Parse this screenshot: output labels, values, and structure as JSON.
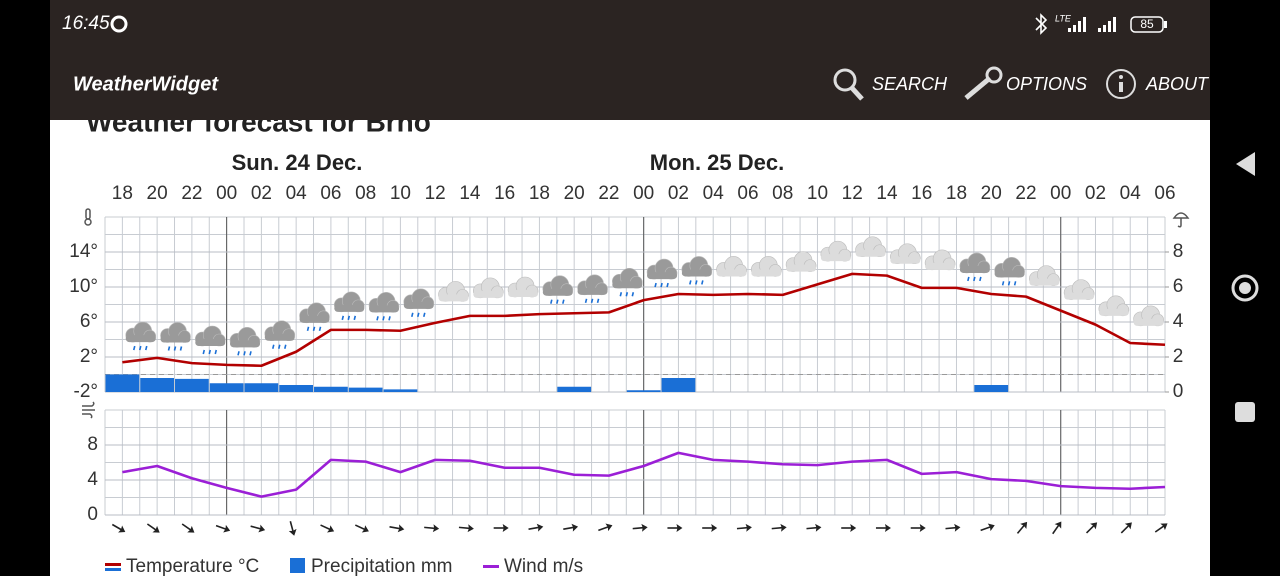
{
  "status_bar": {
    "time": "16:45",
    "network": "LTE",
    "battery": "85"
  },
  "app_bar": {
    "title": "WeatherWidget",
    "menu": [
      "SEARCH",
      "OPTIONS",
      "ABOUT"
    ]
  },
  "page": {
    "title": "Weather forecast for Brno",
    "days": [
      "Sun. 24 Dec.",
      "Mon. 25 Dec."
    ]
  },
  "chart_data": [
    {
      "type": "combo",
      "categories": [
        "18",
        "20",
        "22",
        "00",
        "02",
        "04",
        "06",
        "08",
        "10",
        "12",
        "14",
        "16",
        "18",
        "20",
        "22",
        "00",
        "02",
        "04",
        "06",
        "08",
        "10",
        "12",
        "14",
        "16",
        "18",
        "20",
        "22",
        "00",
        "02",
        "04",
        "06"
      ],
      "ylim": [
        -2,
        18
      ],
      "yticks": [
        {
          "value": -2,
          "label": "-2°"
        },
        {
          "value": 2,
          "label": "2°"
        },
        {
          "value": 6,
          "label": "6°"
        },
        {
          "value": 10,
          "label": "10°"
        },
        {
          "value": 14,
          "label": "14°"
        }
      ],
      "y2lim": [
        0,
        10
      ],
      "y2ticks": [
        0,
        2,
        4,
        6,
        8
      ],
      "grid": true,
      "series": [
        {
          "name": "Temperature °C",
          "type": "line",
          "color": "#b20000",
          "values": [
            1.4,
            1.9,
            1.3,
            1.1,
            1.0,
            2.6,
            5.1,
            5.1,
            5.0,
            5.9,
            6.7,
            6.7,
            6.9,
            7.0,
            7.1,
            8.5,
            9.2,
            9.1,
            9.2,
            9.1,
            10.3,
            11.5,
            11.3,
            9.9,
            9.9,
            9.2,
            8.9,
            7.3,
            5.7,
            3.6,
            3.4
          ]
        },
        {
          "name": "Precipitation mm",
          "type": "bar",
          "axis": "y2",
          "color": "#1a6fd6",
          "values": [
            1.0,
            0.8,
            0.75,
            0.5,
            0.5,
            0.4,
            0.3,
            0.25,
            0.15,
            0,
            0,
            0,
            0,
            0.3,
            0,
            0.1,
            0.8,
            0,
            0,
            0,
            0,
            0,
            0,
            0,
            0,
            0.4,
            0,
            0,
            0,
            0,
            0
          ]
        }
      ]
    },
    {
      "type": "line",
      "ylim": [
        0,
        12
      ],
      "yticks": [
        0,
        4,
        8
      ],
      "grid": true,
      "series": [
        {
          "name": "Wind m/s",
          "color": "#9b1fd6",
          "values": [
            4.9,
            5.6,
            4.2,
            3.1,
            2.1,
            2.9,
            6.3,
            6.1,
            4.9,
            6.3,
            6.2,
            5.4,
            5.4,
            4.6,
            4.5,
            5.6,
            7.1,
            6.3,
            6.1,
            5.8,
            5.7,
            6.1,
            6.3,
            4.7,
            4.9,
            4.1,
            3.9,
            3.3,
            3.1,
            3.0,
            3.2
          ]
        }
      ]
    }
  ]
}
